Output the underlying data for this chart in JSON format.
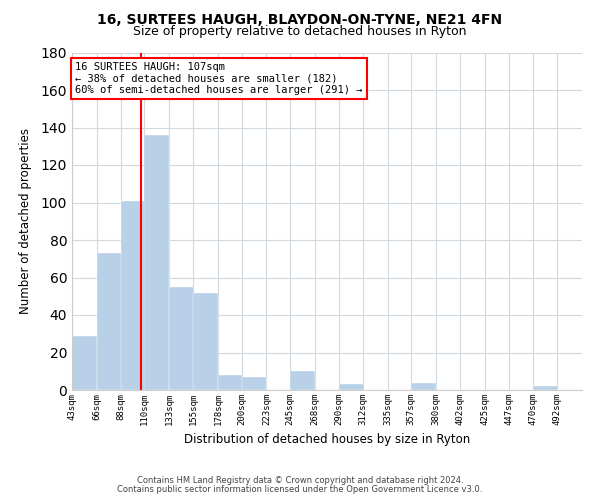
{
  "title": "16, SURTEES HAUGH, BLAYDON-ON-TYNE, NE21 4FN",
  "subtitle": "Size of property relative to detached houses in Ryton",
  "xlabel": "Distribution of detached houses by size in Ryton",
  "ylabel": "Number of detached properties",
  "bar_color": "#b8d0e8",
  "bar_edge_color": "#b8d0e8",
  "vline_x": 107,
  "vline_color": "red",
  "annotation_title": "16 SURTEES HAUGH: 107sqm",
  "annotation_line1": "← 38% of detached houses are smaller (182)",
  "annotation_line2": "60% of semi-detached houses are larger (291) →",
  "annotation_box_color": "white",
  "annotation_box_edge": "red",
  "categories": [
    "43sqm",
    "66sqm",
    "88sqm",
    "110sqm",
    "133sqm",
    "155sqm",
    "178sqm",
    "200sqm",
    "223sqm",
    "245sqm",
    "268sqm",
    "290sqm",
    "312sqm",
    "335sqm",
    "357sqm",
    "380sqm",
    "402sqm",
    "425sqm",
    "447sqm",
    "470sqm",
    "492sqm"
  ],
  "bin_edges": [
    43,
    66,
    88,
    110,
    133,
    155,
    178,
    200,
    223,
    245,
    268,
    290,
    312,
    335,
    357,
    380,
    402,
    425,
    447,
    470,
    492
  ],
  "values": [
    29,
    73,
    101,
    136,
    55,
    52,
    8,
    7,
    0,
    10,
    0,
    3,
    0,
    0,
    4,
    0,
    0,
    0,
    0,
    2,
    0
  ],
  "ylim": [
    0,
    180
  ],
  "yticks": [
    0,
    20,
    40,
    60,
    80,
    100,
    120,
    140,
    160,
    180
  ],
  "footer1": "Contains HM Land Registry data © Crown copyright and database right 2024.",
  "footer2": "Contains public sector information licensed under the Open Government Licence v3.0.",
  "background_color": "#ffffff",
  "grid_color": "#d0d8e0"
}
